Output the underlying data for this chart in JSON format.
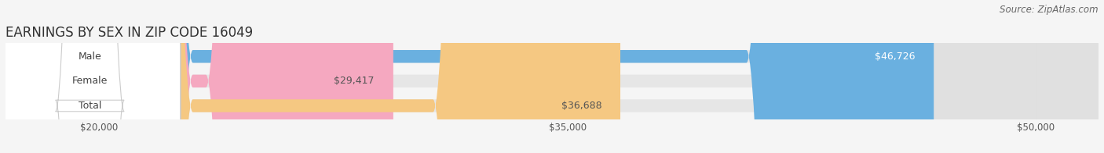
{
  "title": "EARNINGS BY SEX IN ZIP CODE 16049",
  "source": "Source: ZipAtlas.com",
  "categories": [
    "Male",
    "Female",
    "Total"
  ],
  "values": [
    46726,
    29417,
    36688
  ],
  "bar_colors": [
    "#6ab0e0",
    "#f5a8c0",
    "#f5c882"
  ],
  "bar_bg_color": "#e0e0e0",
  "label_colors": [
    "#ffffff",
    "#555555",
    "#555555"
  ],
  "xmin": 17000,
  "xmax": 52000,
  "xticks": [
    20000,
    35000,
    50000
  ],
  "xtick_labels": [
    "$20,000",
    "$35,000",
    "$50,000"
  ],
  "value_labels": [
    "$46,726",
    "$29,417",
    "$36,688"
  ],
  "title_fontsize": 12,
  "source_fontsize": 8.5,
  "bar_height": 0.52,
  "background_color": "#f5f5f5"
}
